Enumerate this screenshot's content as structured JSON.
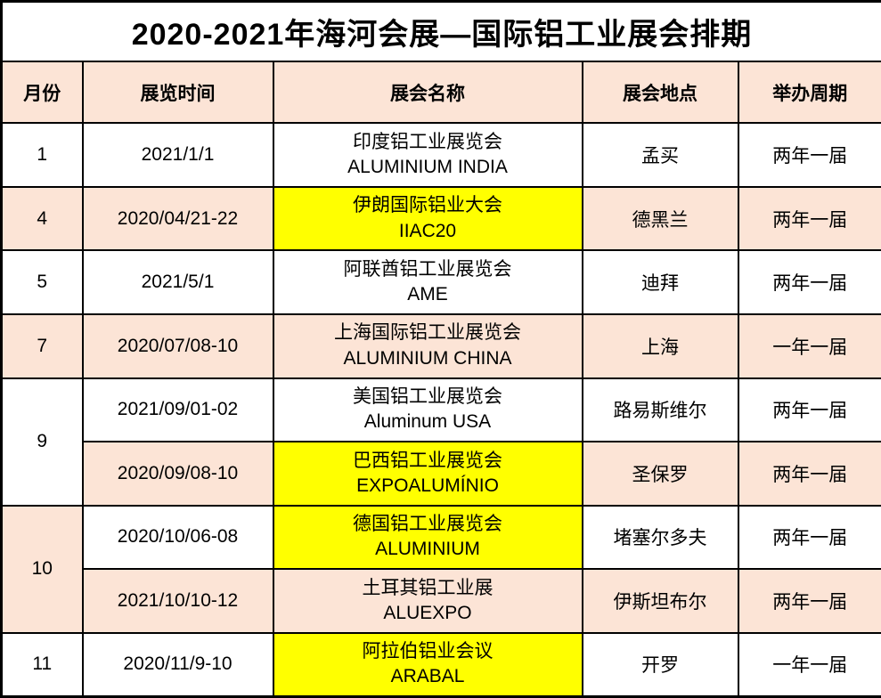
{
  "title": "2020-2021年海河会展—国际铝工业展会排期",
  "colors": {
    "header_bg": "#fce4d6",
    "alt_row_bg": "#fce4d6",
    "highlight_bg": "#ffff00",
    "plain_bg": "#ffffff",
    "border": "#000000",
    "text": "#000000"
  },
  "table": {
    "columns": {
      "month": "月份",
      "time": "展览时间",
      "name": "展会名称",
      "location": "展会地点",
      "cycle": "举办周期"
    },
    "rows": [
      {
        "month": "1",
        "month_rowspan": 1,
        "time": "2021/1/1",
        "name_cn": "印度铝工业展览会",
        "name_en": "ALUMINIUM INDIA",
        "location": "孟买",
        "cycle": "两年一届",
        "highlighted": false
      },
      {
        "month": "4",
        "month_rowspan": 1,
        "time": "2020/04/21-22",
        "name_cn": "伊朗国际铝业大会",
        "name_en": "IIAC20",
        "location": "德黑兰",
        "cycle": "两年一届",
        "highlighted": true
      },
      {
        "month": "5",
        "month_rowspan": 1,
        "time": "2021/5/1",
        "name_cn": "阿联酋铝工业展览会",
        "name_en": "AME",
        "location": "迪拜",
        "cycle": "两年一届",
        "highlighted": false
      },
      {
        "month": "7",
        "month_rowspan": 1,
        "time": "2020/07/08-10",
        "name_cn": "上海国际铝工业展览会",
        "name_en": "ALUMINIUM  CHINA",
        "location": "上海",
        "cycle": "一年一届",
        "highlighted": false
      },
      {
        "month": "9",
        "month_rowspan": 2,
        "time": "2021/09/01-02",
        "name_cn": "美国铝工业展览会",
        "name_en": "Aluminum USA",
        "location": "路易斯维尔",
        "cycle": "两年一届",
        "highlighted": false
      },
      {
        "month": null,
        "month_rowspan": 0,
        "time": "2020/09/08-10",
        "name_cn": "巴西铝工业展览会",
        "name_en": "EXPOALUMÍNIO",
        "location": "圣保罗",
        "cycle": "两年一届",
        "highlighted": true
      },
      {
        "month": "10",
        "month_rowspan": 2,
        "time": "2020/10/06-08",
        "name_cn": "德国铝工业展览会",
        "name_en": "ALUMINIUM",
        "location": "堵塞尔多夫",
        "cycle": "两年一届",
        "highlighted": true
      },
      {
        "month": null,
        "month_rowspan": 0,
        "time": "2021/10/10-12",
        "name_cn": "土耳其铝工业展",
        "name_en": "ALUEXPO",
        "location": "伊斯坦布尔",
        "cycle": "两年一届",
        "highlighted": false
      },
      {
        "month": "11",
        "month_rowspan": 1,
        "time": "2020/11/9-10",
        "name_cn": "阿拉伯铝业会议",
        "name_en": "ARABAL",
        "location": "开罗",
        "cycle": "一年一届",
        "highlighted": true
      }
    ]
  }
}
